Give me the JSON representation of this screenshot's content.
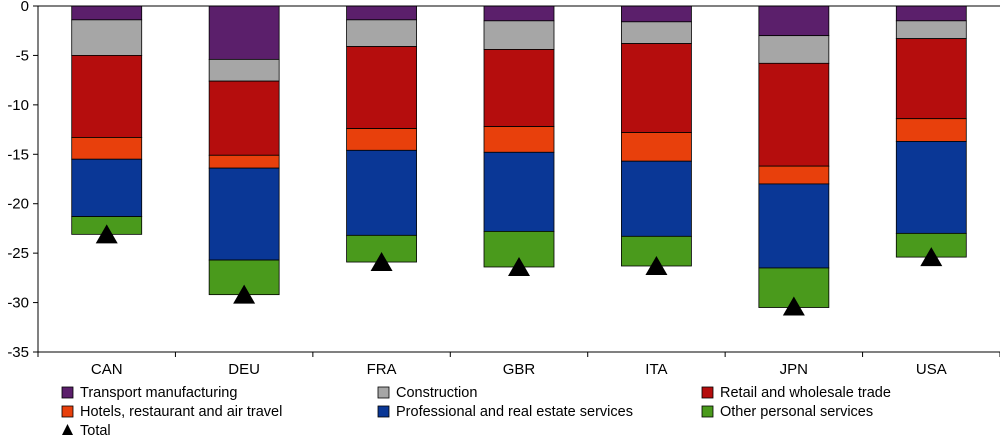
{
  "chart_data": {
    "type": "bar",
    "stacked": true,
    "categories": [
      "CAN",
      "DEU",
      "FRA",
      "GBR",
      "ITA",
      "JPN",
      "USA"
    ],
    "ylim": [
      -35,
      0
    ],
    "yticks": [
      0,
      -5,
      -10,
      -15,
      -20,
      -25,
      -30,
      -35
    ],
    "grid": false,
    "legend_position": "bottom",
    "series": [
      {
        "name": "Transport manufacturing",
        "color": "#5b1f6b",
        "values": [
          -1.4,
          -5.4,
          -1.4,
          -1.5,
          -1.6,
          -3.0,
          -1.5
        ]
      },
      {
        "name": "Construction",
        "color": "#a6a6a6",
        "values": [
          -3.6,
          -2.2,
          -2.7,
          -2.9,
          -2.2,
          -2.8,
          -1.8
        ]
      },
      {
        "name": "Retail and wholesale trade",
        "color": "#b50d0d",
        "values": [
          -8.3,
          -7.5,
          -8.3,
          -7.8,
          -9.0,
          -10.4,
          -8.1
        ]
      },
      {
        "name": "Hotels, restaurant and air travel",
        "color": "#e8400c",
        "values": [
          -2.2,
          -1.3,
          -2.2,
          -2.6,
          -2.9,
          -1.8,
          -2.3
        ]
      },
      {
        "name": "Professional and real estate services",
        "color": "#0a3796",
        "values": [
          -5.8,
          -9.3,
          -8.6,
          -8.0,
          -7.6,
          -8.5,
          -9.3
        ]
      },
      {
        "name": "Other personal services",
        "color": "#4a9a1c",
        "values": [
          -1.8,
          -3.5,
          -2.7,
          -3.6,
          -3.0,
          -4.0,
          -2.4
        ]
      }
    ],
    "total": {
      "name": "Total",
      "marker": "triangle",
      "values": [
        -23.1,
        -29.2,
        -25.9,
        -26.4,
        -26.3,
        -30.4,
        -25.4
      ]
    }
  }
}
